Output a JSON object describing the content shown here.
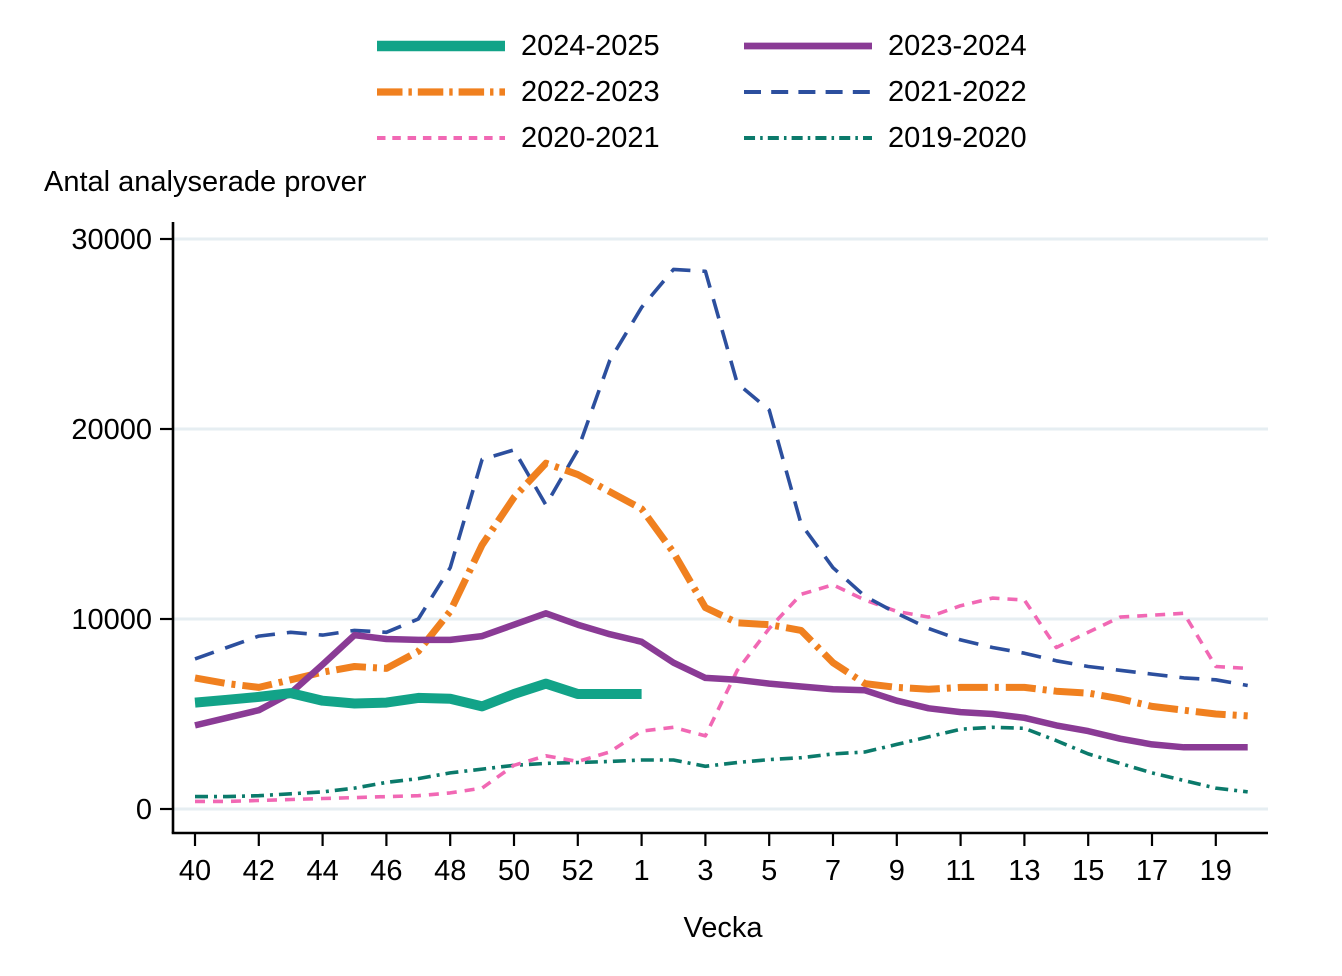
{
  "titles": {
    "y_axis": "Antal analyserade prover",
    "x_axis": "Vecka"
  },
  "legend": {
    "position": "top-center",
    "items": [
      {
        "label": "2024-2025"
      },
      {
        "label": "2023-2024"
      },
      {
        "label": "2022-2023"
      },
      {
        "label": "2021-2022"
      },
      {
        "label": "2020-2021"
      },
      {
        "label": "2019-2020"
      }
    ]
  },
  "chart_data": {
    "type": "line",
    "title": "",
    "xlabel": "Vecka",
    "ylabel": "Antal analyserade prover",
    "ylim": [
      0,
      30000
    ],
    "y_ticks": [
      0,
      10000,
      20000,
      30000
    ],
    "grid": "horizontal",
    "legend_position": "top",
    "weeks": [
      "40",
      "41",
      "42",
      "43",
      "44",
      "45",
      "46",
      "47",
      "48",
      "49",
      "50",
      "51",
      "52",
      "53",
      "1",
      "2",
      "3",
      "4",
      "5",
      "6",
      "7",
      "8",
      "9",
      "10",
      "11",
      "12",
      "13",
      "14",
      "15",
      "16",
      "17",
      "18",
      "19",
      "20"
    ],
    "x_tick_weeks": [
      "40",
      "42",
      "44",
      "46",
      "48",
      "50",
      "52",
      "1",
      "3",
      "5",
      "7",
      "9",
      "11",
      "13",
      "15",
      "17",
      "19"
    ],
    "x_tick_indices": [
      0,
      2,
      4,
      6,
      8,
      10,
      12,
      14,
      16,
      18,
      20,
      22,
      24,
      26,
      28,
      30,
      32
    ],
    "series": [
      {
        "name": "2024-2025",
        "color": "#12a388",
        "dash": "",
        "width": 10,
        "start_index": 0,
        "values": [
          5600,
          5750,
          5900,
          6100,
          5700,
          5550,
          5600,
          5850,
          5800,
          5400,
          6050,
          6600,
          6050,
          6050,
          6050
        ]
      },
      {
        "name": "2023-2024",
        "color": "#8a3b95",
        "dash": "",
        "width": 6.5,
        "start_index": 0,
        "values": [
          4400,
          4800,
          5200,
          6100,
          7600,
          9150,
          8950,
          8900,
          8900,
          9100,
          9700,
          10300,
          9700,
          9200,
          8800,
          7700,
          6900,
          6800,
          6600,
          6450,
          6300,
          6250,
          5700,
          5300,
          5100,
          5000,
          4800,
          4400,
          4100,
          3700,
          3400,
          3250,
          3250,
          3250
        ]
      },
      {
        "name": "2022-2023",
        "color": "#f0801f",
        "dash": "30 7 4 7",
        "width": 7,
        "start_index": 0,
        "values": [
          6900,
          6600,
          6400,
          6800,
          7200,
          7500,
          7400,
          8300,
          10400,
          13900,
          16400,
          18200,
          17600,
          16700,
          15800,
          13500,
          10600,
          9800,
          9700,
          9400,
          7700,
          6600,
          6400,
          6300,
          6400,
          6400,
          6400,
          6200,
          6100,
          5800,
          5400,
          5200,
          5000,
          4900
        ]
      },
      {
        "name": "2021-2022",
        "color": "#2c4f9e",
        "dash": "20 12",
        "width": 3.6,
        "start_index": 0,
        "values": [
          7900,
          8500,
          9100,
          9300,
          9150,
          9400,
          9300,
          10000,
          12700,
          18400,
          18900,
          16000,
          18900,
          23600,
          26400,
          28400,
          28300,
          22400,
          21000,
          15000,
          12700,
          11200,
          10300,
          9500,
          8900,
          8500,
          8200,
          7800,
          7500,
          7300,
          7100,
          6900,
          6800,
          6500
        ]
      },
      {
        "name": "2020-2021",
        "color": "#f168b4",
        "dash": "10 8",
        "width": 3.6,
        "start_index": 0,
        "values": [
          400,
          400,
          450,
          500,
          550,
          600,
          650,
          700,
          850,
          1100,
          2300,
          2800,
          2500,
          3000,
          4100,
          4300,
          3850,
          7300,
          9500,
          11300,
          11800,
          11000,
          10400,
          10100,
          10700,
          11100,
          11000,
          8500,
          9300,
          10100,
          10200,
          10300,
          7500,
          7400
        ]
      },
      {
        "name": "2019-2020",
        "color": "#0b7a6b",
        "dash": "13 6 3 6",
        "width": 3.6,
        "start_index": 0,
        "values": [
          650,
          650,
          700,
          800,
          900,
          1100,
          1400,
          1600,
          1900,
          2100,
          2300,
          2400,
          2450,
          2500,
          2580,
          2580,
          2250,
          2450,
          2600,
          2700,
          2900,
          3000,
          3400,
          3800,
          4200,
          4300,
          4250,
          3600,
          2900,
          2400,
          1900,
          1500,
          1100,
          900
        ]
      }
    ],
    "colors": {
      "background": "#ffffff",
      "gridline": "#e6eef2",
      "axis": "#000000",
      "text": "#000000"
    }
  }
}
